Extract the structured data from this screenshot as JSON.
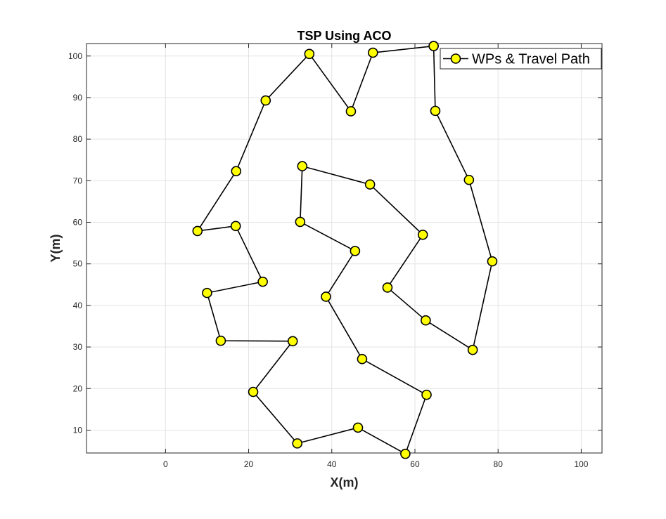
{
  "chart_data": {
    "type": "line",
    "title": "TSP Using ACO",
    "xlabel": "X(m)",
    "ylabel": "Y(m)",
    "xlim": [
      -19,
      105
    ],
    "ylim": [
      4.5,
      103
    ],
    "xticks": [
      0,
      20,
      40,
      60,
      80,
      100
    ],
    "yticks": [
      10,
      20,
      30,
      40,
      50,
      60,
      70,
      80,
      90,
      100
    ],
    "grid": true,
    "legend_position": "top-right",
    "series": [
      {
        "name": "WPs & Travel Path",
        "marker": "circle",
        "marker_color": "#ffff00",
        "line_color": "#000000",
        "x": [
          64.5,
          49.9,
          44.6,
          34.6,
          24.1,
          17.0,
          7.7,
          16.9,
          23.4,
          10.0,
          13.3,
          30.6,
          21.1,
          31.7,
          46.3,
          57.7,
          62.8,
          47.3,
          38.6,
          45.6,
          32.4,
          32.9,
          49.2,
          61.9,
          53.4,
          62.6,
          73.9,
          78.6,
          73.0,
          64.9,
          64.5
        ],
        "y": [
          102.4,
          100.8,
          86.7,
          100.5,
          89.3,
          72.3,
          57.9,
          59.1,
          45.7,
          43.0,
          31.5,
          31.4,
          19.2,
          6.8,
          10.6,
          4.3,
          18.5,
          27.1,
          42.1,
          53.1,
          60.1,
          73.5,
          69.1,
          57.0,
          44.3,
          36.4,
          29.3,
          50.6,
          70.2,
          86.8,
          102.4
        ]
      }
    ]
  },
  "colors": {
    "background": "#ffffff",
    "plot_area": "#ffffff",
    "grid": "#e3e3e3",
    "axes": "#262626"
  }
}
